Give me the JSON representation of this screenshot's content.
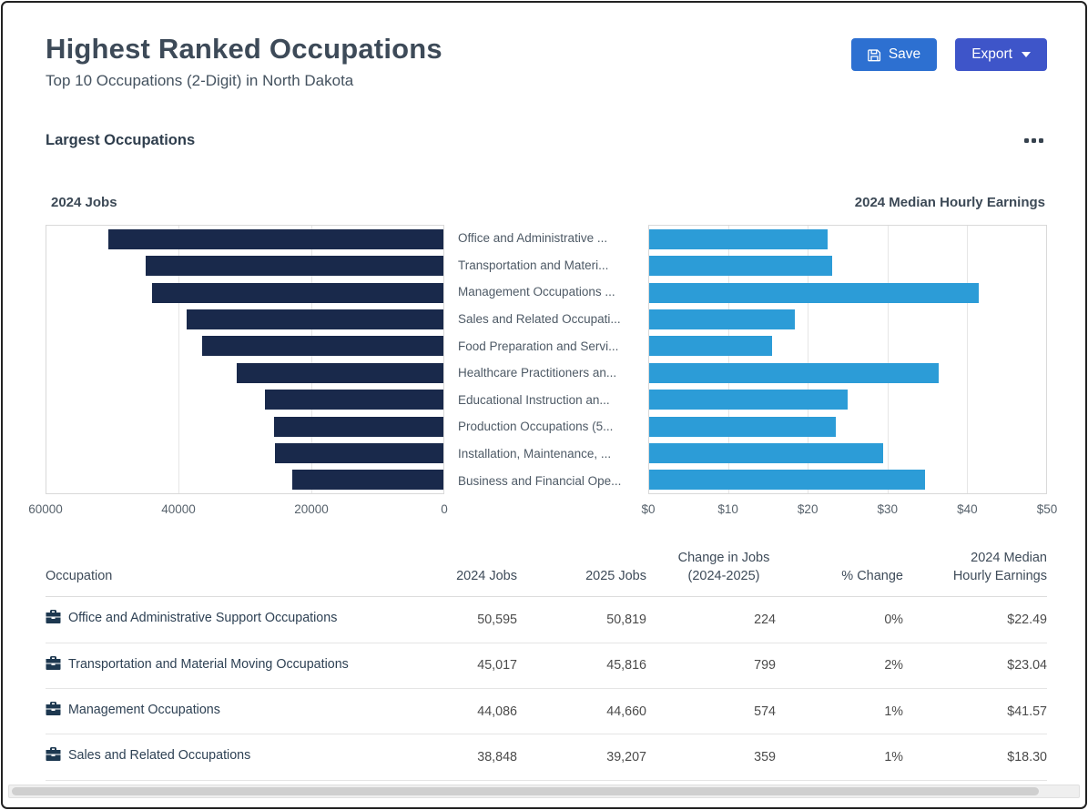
{
  "colors": {
    "jobs_bar": "#19294b",
    "earnings_bar": "#2c9cd7",
    "save_button_bg": "#2d70d1",
    "export_button_bg": "#3e55c9",
    "link_text": "#2e4154"
  },
  "header": {
    "title": "Highest Ranked Occupations",
    "subtitle": "Top 10 Occupations (2-Digit) in North Dakota"
  },
  "toolbar": {
    "save_label": "Save",
    "export_label": "Export"
  },
  "card": {
    "title": "Largest Occupations"
  },
  "chart_data": {
    "type": "bar",
    "orientation": "horizontal-dual",
    "categories": [
      "Office and Administrative ...",
      "Transportation and Materi...",
      "Management Occupations ...",
      "Sales and Related Occupati...",
      "Food Preparation and Servi...",
      "Healthcare Practitioners an...",
      "Educational Instruction an...",
      "Production Occupations (5...",
      "Installation, Maintenance, ...",
      "Business and Financial Ope..."
    ],
    "left": {
      "title": "2024 Jobs",
      "axis_min": 0,
      "axis_max": 60000,
      "ticks": [
        "60000",
        "40000",
        "20000",
        "0"
      ],
      "values": [
        50595,
        45017,
        44086,
        38848,
        36500,
        31200,
        27000,
        25600,
        25400,
        22900
      ],
      "color": "#19294b"
    },
    "right": {
      "title": "2024 Median Hourly Earnings",
      "axis_min": 0,
      "axis_max": 50,
      "ticks": [
        "$0",
        "$10",
        "$20",
        "$30",
        "$40",
        "$50"
      ],
      "values": [
        22.49,
        23.04,
        41.57,
        18.3,
        15.5,
        36.5,
        25.0,
        23.5,
        29.5,
        34.75
      ],
      "color": "#2c9cd7"
    }
  },
  "table": {
    "columns": [
      "Occupation",
      "2024 Jobs",
      "2025 Jobs",
      "Change in Jobs (2024-2025)",
      "% Change",
      "2024 Median Hourly Earnings"
    ],
    "rows": [
      {
        "occupation": "Office and Administrative Support Occupations",
        "jobs_2024": "50,595",
        "jobs_2025": "50,819",
        "change": "224",
        "pct_change": "0%",
        "earnings": "$22.49"
      },
      {
        "occupation": "Transportation and Material Moving Occupations",
        "jobs_2024": "45,017",
        "jobs_2025": "45,816",
        "change": "799",
        "pct_change": "2%",
        "earnings": "$23.04"
      },
      {
        "occupation": "Management Occupations",
        "jobs_2024": "44,086",
        "jobs_2025": "44,660",
        "change": "574",
        "pct_change": "1%",
        "earnings": "$41.57"
      },
      {
        "occupation": "Sales and Related Occupations",
        "jobs_2024": "38,848",
        "jobs_2025": "39,207",
        "change": "359",
        "pct_change": "1%",
        "earnings": "$18.30"
      }
    ]
  }
}
